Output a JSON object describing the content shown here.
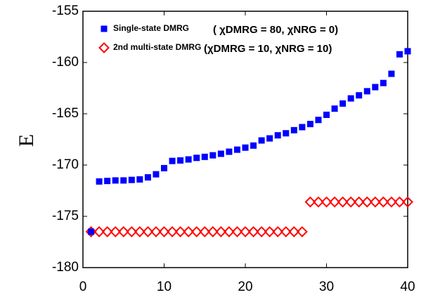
{
  "chart_data": {
    "type": "scatter",
    "y_label": "E",
    "x": [
      1,
      2,
      3,
      4,
      5,
      6,
      7,
      8,
      9,
      10,
      11,
      12,
      13,
      14,
      15,
      16,
      17,
      18,
      19,
      20,
      21,
      22,
      23,
      24,
      25,
      26,
      27,
      28,
      29,
      30,
      31,
      32,
      33,
      34,
      35,
      36,
      37,
      38,
      39,
      40
    ],
    "series": [
      {
        "name": "Single-state DMRG",
        "color": "#0000ff",
        "marker": "square",
        "values": [
          -176.5,
          -171.6,
          -171.55,
          -171.5,
          -171.5,
          -171.45,
          -171.4,
          -171.2,
          -170.9,
          -170.3,
          -169.6,
          -169.55,
          -169.45,
          -169.3,
          -169.2,
          -169.05,
          -168.9,
          -168.7,
          -168.5,
          -168.3,
          -168.1,
          -167.6,
          -167.4,
          -167.1,
          -166.9,
          -166.6,
          -166.3,
          -166.0,
          -165.6,
          -165.1,
          -164.5,
          -164.0,
          -163.5,
          -163.2,
          -162.8,
          -162.4,
          -162.0,
          -161.1,
          -159.2,
          -158.9
        ]
      },
      {
        "name": "2nd multi-state DMRG",
        "color": "#ff0000",
        "marker": "diamond",
        "values": [
          -176.5,
          -176.5,
          -176.5,
          -176.5,
          -176.5,
          -176.5,
          -176.5,
          -176.5,
          -176.5,
          -176.5,
          -176.5,
          -176.5,
          -176.5,
          -176.5,
          -176.5,
          -176.5,
          -176.5,
          -176.5,
          -176.5,
          -176.5,
          -176.5,
          -176.5,
          -176.5,
          -176.5,
          -176.5,
          -176.5,
          -176.5,
          -173.6,
          -173.6,
          -173.6,
          -173.6,
          -173.6,
          -173.6,
          -173.6,
          -173.6,
          -173.6,
          -173.6,
          -173.6,
          -173.6,
          -173.6
        ]
      }
    ],
    "annotations": [
      "( χDMRG = 80, χNRG = 0)",
      "(χDMRG = 10, χNRG = 10)"
    ],
    "xlim": [
      0,
      40
    ],
    "xticks": [
      0,
      10,
      20,
      30,
      40
    ],
    "ylim": [
      -180,
      -155
    ],
    "yticks": [
      -180,
      -175,
      -170,
      -165,
      -160,
      -155
    ],
    "legend": "upper-left"
  }
}
